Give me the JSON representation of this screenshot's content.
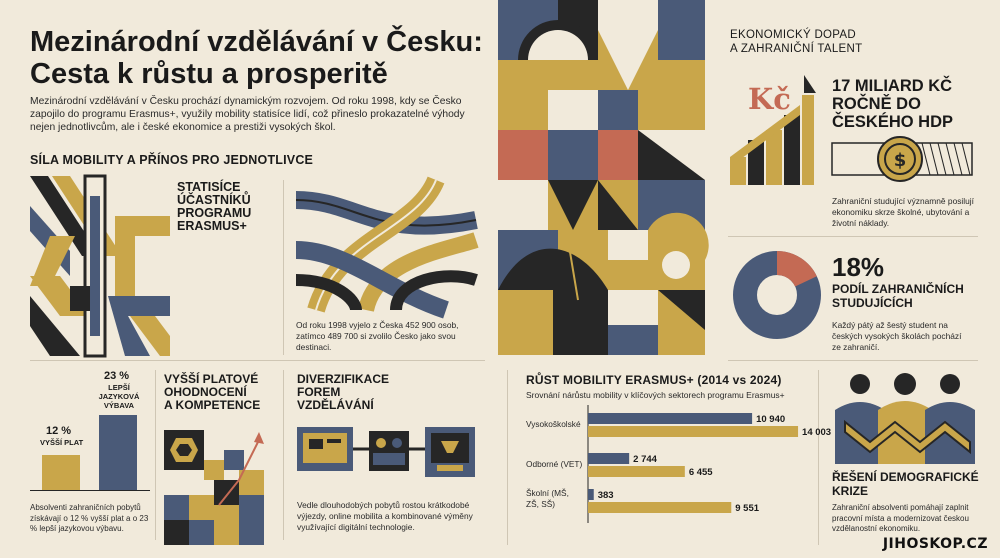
{
  "header": {
    "title_line1": "Mezinárodní vzdělávání v Česku:",
    "title_line2": "Cesta k růstu a prosperitě",
    "intro": "Mezinárodní vzdělávání v Česku prochází dynamickým rozvojem. Od roku 1998, kdy se Česko zapojilo do programu Erasmus+, využily mobility statisíce lidí, což přineslo prokazatelné výhody nejen jednotlivcům, ale i české ekonomice a prestiži vysokých škol."
  },
  "mobility": {
    "heading": "SÍLA MOBILITY A PŘÍNOS PRO JEDNOTLIVCE",
    "participants_heading": [
      "STATISÍCE",
      "ÚČASTNÍKŮ",
      "PROGRAMU",
      "ERASMUS+"
    ],
    "participants_text": "Od roku 1998 vyjelo z Česka 452 900 osob, zatímco 489 700 si zvolilo Česko jako svou destinaci."
  },
  "salary": {
    "heading": [
      "VYŠŠÍ PLATOVÉ",
      "OHODNOCENÍ",
      "A KOMPETENCE"
    ],
    "bar1_pct": "12 %",
    "bar1_label": "VYŠŠÍ PLAT",
    "bar2_pct": "23 %",
    "bar2_label": [
      "LEPŠÍ",
      "JAZYKOVÁ",
      "VÝBAVA"
    ],
    "text": "Absolventi zahraničních pobytů získávají o 12 % vyšší plat a o 23 % lepší jazykovou výbavu."
  },
  "diversification": {
    "heading": [
      "DIVERZIFIKACE",
      "FOREM",
      "VZDĚLÁVÁNÍ"
    ],
    "text": "Vedle dlouhodobých pobytů rostou krátkodobé výjezdy, online mobilita a kombinované výměny využívající digitální technologie."
  },
  "economy": {
    "heading": [
      "EKONOMICKÝ DOPAD",
      "A ZAHRANIČNÍ TALENT"
    ],
    "currency_label": "Kč",
    "big_stat": [
      "17 MILIARD KČ",
      "ROČNĚ DO",
      "ČESKÉHO HDP"
    ],
    "big_stat_text": "Zahraniční studující významně posilují ekonomiku skrze školné, ubytování a životní náklady.",
    "share_stat": "18%",
    "share_heading": [
      "PODÍL ZAHRANIČNÍCH",
      "STUDUJÍCÍCH"
    ],
    "share_text": "Každý pátý až šestý student na českých vysokých školách pochází ze zahraničí."
  },
  "demography": {
    "heading": [
      "ŘEŠENÍ DEMOGRAFICKÉ",
      "KRIZE"
    ],
    "text": "Zahraniční absolventi pomáhají zaplnit pracovní místa a modernizovat českou vzdělanostní ekonomiku."
  },
  "chart_data": {
    "type": "bar",
    "title": "RŮST MOBILITY ERASMUS+ (2014 vs 2024)",
    "subtitle": "Srovnání nárůstu mobility v klíčových sektorech programu Erasmus+",
    "categories": [
      "Vysokoškolské",
      "Odborné (VET)",
      "Školní (MŠ, ZŠ, SŠ)"
    ],
    "category_lines": [
      [
        "Vysokoškolské"
      ],
      [
        "Odborné (VET)"
      ],
      [
        "Školní (MŠ,",
        "ZŠ, SŠ)"
      ]
    ],
    "series": [
      {
        "values": [
          10940,
          2744,
          383
        ],
        "color": "#4a5a78"
      },
      {
        "values": [
          14003,
          6455,
          9551
        ],
        "color": "#c9a64a"
      }
    ],
    "value_labels": [
      [
        "10 940",
        "2 744",
        "383"
      ],
      [
        "14 003",
        "6 455",
        "9 551"
      ]
    ],
    "xlim": [
      0,
      15000
    ]
  },
  "colors": {
    "navy": "#4a5a78",
    "gold": "#c9a64a",
    "terracotta": "#c46a54",
    "dark": "#262626",
    "cream": "#f1eadb",
    "gray": "#8f8a80"
  },
  "footer": {
    "watermark": "JIHOSKOP.CZ"
  }
}
